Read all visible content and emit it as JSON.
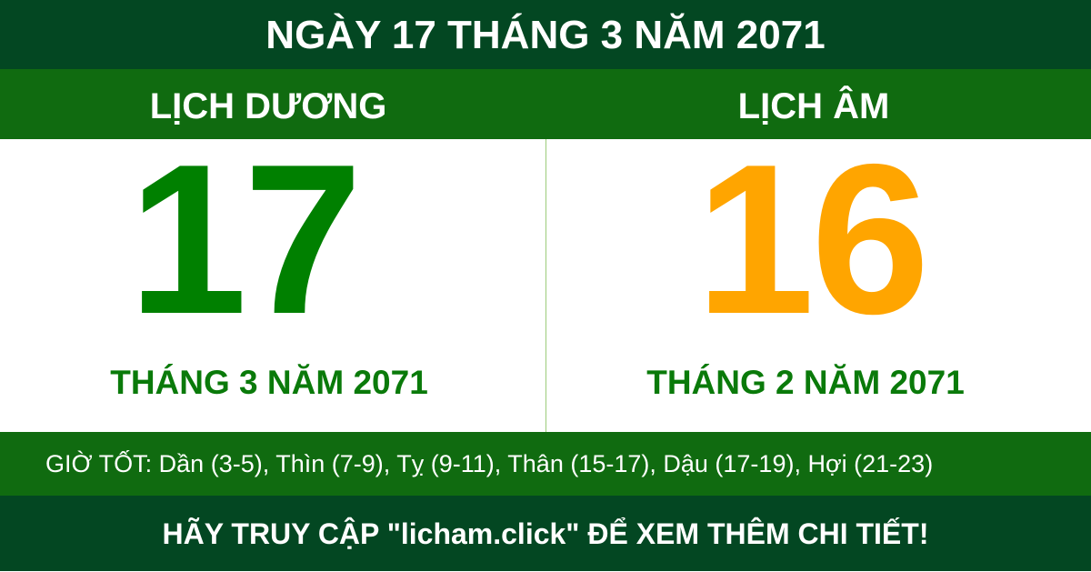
{
  "title": "NGÀY 17 THÁNG 3 NĂM 2071",
  "solar": {
    "label": "LỊCH DƯƠNG",
    "day": "17",
    "month_year": "THÁNG 3 NĂM 2071",
    "color": "#008000"
  },
  "lunar": {
    "label": "LỊCH ÂM",
    "day": "16",
    "month_year": "THÁNG 2 NĂM 2071",
    "color": "#ffa500"
  },
  "good_hours": "GIỜ TỐT: Dần (3-5), Thìn (7-9), Tỵ (9-11), Thân (15-17), Dậu (17-19), Hợi (21-23)",
  "footer": "HÃY TRUY CẬP \"licham.click\" ĐỂ XEM THÊM CHI TIẾT!",
  "colors": {
    "dark_green": "#034722",
    "band_green": "#106b10"
  }
}
